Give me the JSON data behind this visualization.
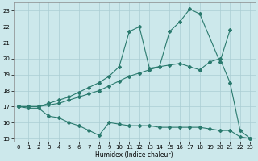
{
  "xlabel": "Humidex (Indice chaleur)",
  "line_color": "#2a7a6e",
  "bg_color": "#cce8eb",
  "grid_color": "#aacdd4",
  "xlim": [
    -0.5,
    23.5
  ],
  "ylim": [
    14.8,
    23.5
  ],
  "yticks": [
    15,
    16,
    17,
    18,
    19,
    20,
    21,
    22,
    23
  ],
  "xticks": [
    0,
    1,
    2,
    3,
    4,
    5,
    6,
    7,
    8,
    9,
    10,
    11,
    12,
    13,
    14,
    15,
    16,
    17,
    18,
    19,
    20,
    21,
    22,
    23
  ],
  "line1_x": [
    0,
    1,
    2,
    3,
    4,
    5,
    6,
    7,
    8,
    9,
    10,
    11,
    12,
    13,
    14,
    15,
    16,
    17,
    18,
    20,
    21
  ],
  "line1_y": [
    17.0,
    17.0,
    17.0,
    17.2,
    17.4,
    17.6,
    17.9,
    18.2,
    18.5,
    18.9,
    19.5,
    21.7,
    22.0,
    19.4,
    19.5,
    21.7,
    22.3,
    23.1,
    22.8,
    19.8,
    21.8
  ],
  "line2_x": [
    0,
    1,
    2,
    3,
    4,
    5,
    6,
    7,
    8,
    9,
    10,
    11,
    12,
    13,
    14,
    15,
    16,
    17,
    18,
    19,
    20,
    21,
    22,
    23
  ],
  "line2_y": [
    17.0,
    17.0,
    17.0,
    17.1,
    17.2,
    17.4,
    17.6,
    17.8,
    18.0,
    18.3,
    18.6,
    18.9,
    19.1,
    19.3,
    19.5,
    19.6,
    19.7,
    19.5,
    19.3,
    19.8,
    20.0,
    18.5,
    15.5,
    15.0
  ],
  "line3_x": [
    0,
    1,
    2,
    3,
    4,
    5,
    6,
    7,
    8,
    9,
    10,
    11,
    12,
    13,
    14,
    15,
    16,
    17,
    18,
    19,
    20,
    21,
    22,
    23
  ],
  "line3_y": [
    17.0,
    16.9,
    16.9,
    16.4,
    16.3,
    16.0,
    15.8,
    15.5,
    15.2,
    16.0,
    15.9,
    15.8,
    15.8,
    15.8,
    15.7,
    15.7,
    15.7,
    15.7,
    15.7,
    15.6,
    15.5,
    15.5,
    15.1,
    15.0
  ]
}
